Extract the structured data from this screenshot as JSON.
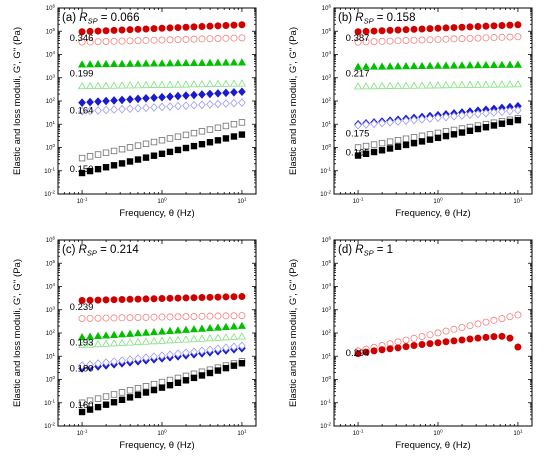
{
  "chart_data": [
    {
      "type": "scatter",
      "panel_letter": "(a)",
      "rsp_value": "= 0.066",
      "xlabel": "Frequency, θ (Hz)",
      "ylabel": "Elastic and loss moduli, G', G'' (Pa)",
      "x_scale": "log",
      "y_scale": "log",
      "xlim": [
        0.05,
        15
      ],
      "ylim": [
        0.01,
        1000000
      ],
      "x_tick_labels": [
        "10^-1",
        "10^0",
        "10^1"
      ],
      "y_tick_labels": [
        "10^-2",
        "10^-1",
        "10^0",
        "10^1",
        "10^2",
        "10^3",
        "10^4",
        "10^5",
        "10^6"
      ],
      "annotations": [
        {
          "text": "0.346",
          "x": 0.07,
          "y": 50000
        },
        {
          "text": "0.199",
          "x": 0.07,
          "y": 1500
        },
        {
          "text": "0.164",
          "x": 0.07,
          "y": 40
        },
        {
          "text": "0.150",
          "x": 0.07,
          "y": 0.12
        }
      ],
      "series": [
        {
          "marker": "circle",
          "fill": "filled",
          "color": "#d00000",
          "y_start": 95000,
          "y_end": 190000
        },
        {
          "marker": "circle",
          "fill": "open",
          "color": "#f08080",
          "y_start": 34000,
          "y_end": 52000
        },
        {
          "marker": "triangle",
          "fill": "filled",
          "color": "#00c000",
          "y_start": 3700,
          "y_end": 4500
        },
        {
          "marker": "triangle",
          "fill": "open",
          "color": "#7ee07e",
          "y_start": 430,
          "y_end": 560
        },
        {
          "marker": "diamond",
          "fill": "filled",
          "color": "#1a1ad0",
          "y_start": 85,
          "y_end": 250
        },
        {
          "marker": "diamond",
          "fill": "open",
          "color": "#9a9af0",
          "y_start": 36,
          "y_end": 85
        },
        {
          "marker": "square",
          "fill": "open",
          "color": "#707070",
          "y_start": 0.35,
          "y_end": 12
        },
        {
          "marker": "square",
          "fill": "filled",
          "color": "#000000",
          "y_start": 0.08,
          "y_end": 3.6
        }
      ]
    },
    {
      "type": "scatter",
      "panel_letter": "(b)",
      "rsp_value": "= 0.158",
      "xlabel": "Frequency, θ (Hz)",
      "ylabel": "Elastic and loss moduli, G', G'' (Pa)",
      "x_scale": "log",
      "y_scale": "log",
      "xlim": [
        0.05,
        15
      ],
      "ylim": [
        0.01,
        1000000
      ],
      "x_tick_labels": [
        "10^-1",
        "10^0",
        "10^1"
      ],
      "y_tick_labels": [
        "10^-2",
        "10^-1",
        "10^0",
        "10^1",
        "10^2",
        "10^3",
        "10^4",
        "10^5",
        "10^6"
      ],
      "annotations": [
        {
          "text": "0.387",
          "x": 0.07,
          "y": 50000
        },
        {
          "text": "0.217",
          "x": 0.07,
          "y": 1500
        },
        {
          "text": "0.175",
          "x": 0.07,
          "y": 4
        },
        {
          "text": "0.165",
          "x": 0.07,
          "y": 0.6
        }
      ],
      "series": [
        {
          "marker": "circle",
          "fill": "filled",
          "color": "#d00000",
          "y_start": 95000,
          "y_end": 190000
        },
        {
          "marker": "circle",
          "fill": "open",
          "color": "#f08080",
          "y_start": 34000,
          "y_end": 58000
        },
        {
          "marker": "triangle",
          "fill": "filled",
          "color": "#00c000",
          "y_start": 2900,
          "y_end": 3600
        },
        {
          "marker": "triangle",
          "fill": "open",
          "color": "#7ee07e",
          "y_start": 420,
          "y_end": 520
        },
        {
          "marker": "diamond",
          "fill": "filled",
          "color": "#1a1ad0",
          "y_start": 10,
          "y_end": 60
        },
        {
          "marker": "diamond",
          "fill": "open",
          "color": "#9a9af0",
          "y_start": 9,
          "y_end": 40
        },
        {
          "marker": "square",
          "fill": "open",
          "color": "#707070",
          "y_start": 1,
          "y_end": 18
        },
        {
          "marker": "square",
          "fill": "filled",
          "color": "#000000",
          "y_start": 0.45,
          "y_end": 15
        }
      ]
    },
    {
      "type": "scatter",
      "panel_letter": "(c)",
      "rsp_value": "= 0.214",
      "xlabel": "Frequency, θ (Hz)",
      "ylabel": "Elastic and loss moduli, G', G'' (Pa)",
      "x_scale": "log",
      "y_scale": "log",
      "xlim": [
        0.05,
        15
      ],
      "ylim": [
        0.01,
        1000000
      ],
      "x_tick_labels": [
        "10^-1",
        "10^0",
        "10^1"
      ],
      "y_tick_labels": [
        "10^-2",
        "10^-1",
        "10^0",
        "10^1",
        "10^2",
        "10^3",
        "10^4",
        "10^5",
        "10^6"
      ],
      "annotations": [
        {
          "text": "0.239",
          "x": 0.07,
          "y": 1300
        },
        {
          "text": "0.193",
          "x": 0.07,
          "y": 40
        },
        {
          "text": "0.180",
          "x": 0.07,
          "y": 3
        },
        {
          "text": "0.160",
          "x": 0.07,
          "y": 0.08
        }
      ],
      "series": [
        {
          "marker": "circle",
          "fill": "filled",
          "color": "#d00000",
          "y_start": 2500,
          "y_end": 3700
        },
        {
          "marker": "circle",
          "fill": "open",
          "color": "#f08080",
          "y_start": 420,
          "y_end": 560
        },
        {
          "marker": "triangle",
          "fill": "filled",
          "color": "#00c000",
          "y_start": 65,
          "y_end": 200
        },
        {
          "marker": "triangle",
          "fill": "open",
          "color": "#7ee07e",
          "y_start": 30,
          "y_end": 70
        },
        {
          "marker": "diamond",
          "fill": "filled",
          "color": "#1a1ad0",
          "y_start": 3,
          "y_end": 22
        },
        {
          "marker": "diamond",
          "fill": "open",
          "color": "#9a9af0",
          "y_start": 4,
          "y_end": 28
        },
        {
          "marker": "square",
          "fill": "open",
          "color": "#707070",
          "y_start": 0.1,
          "y_end": 6
        },
        {
          "marker": "square",
          "fill": "filled",
          "color": "#000000",
          "y_start": 0.04,
          "y_end": 5
        }
      ]
    },
    {
      "type": "scatter",
      "panel_letter": "(d)",
      "rsp_value": "= 1",
      "xlabel": "Frequency, θ (Hz)",
      "ylabel": "Elastic and loss moduli, G', G'' (Pa)",
      "x_scale": "log",
      "y_scale": "log",
      "xlim": [
        0.05,
        15
      ],
      "ylim": [
        0.01,
        1000000
      ],
      "x_tick_labels": [
        "10^-1",
        "10^0",
        "10^1"
      ],
      "y_tick_labels": [
        "10^-2",
        "10^-1",
        "10^0",
        "10^1",
        "10^2",
        "10^3",
        "10^4",
        "10^5",
        "10^6"
      ],
      "annotations": [
        {
          "text": "0.294",
          "x": 0.07,
          "y": 14
        }
      ],
      "series": [
        {
          "marker": "circle",
          "fill": "open",
          "color": "#f08080",
          "y_start": 17,
          "y_end": 600
        },
        {
          "marker": "circle",
          "fill": "filled",
          "color": "#d00000",
          "x": [
            0.1,
            0.1259,
            0.1585,
            0.1995,
            0.2512,
            0.3162,
            0.3981,
            0.5012,
            0.631,
            0.7943,
            1,
            1.2589,
            1.5849,
            1.9953,
            2.5119,
            3.1623,
            3.9811,
            5.0119,
            6.3096,
            7.9433,
            10
          ],
          "y": [
            13,
            15,
            17,
            19,
            21,
            23,
            26,
            29,
            32,
            35,
            38,
            42,
            46,
            50,
            55,
            60,
            65,
            70,
            72,
            60,
            25
          ]
        }
      ]
    }
  ]
}
